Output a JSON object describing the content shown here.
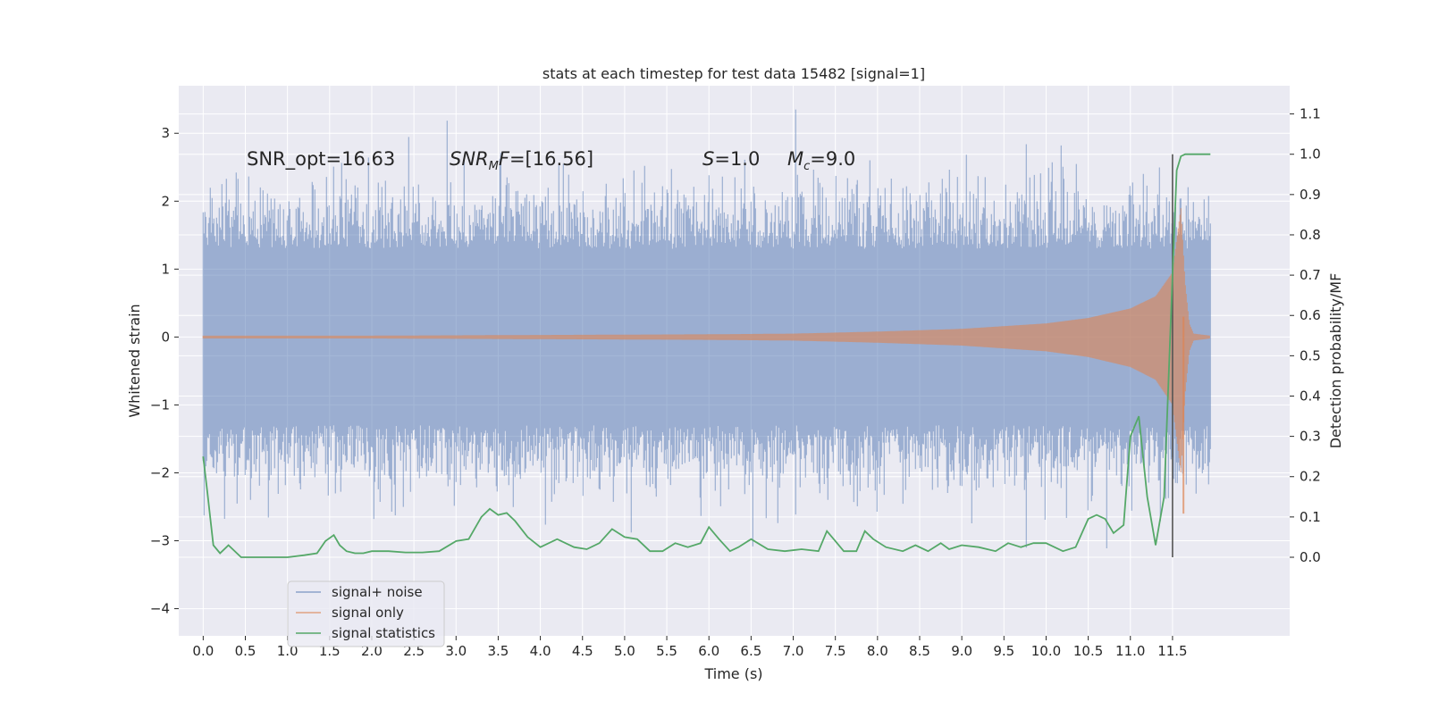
{
  "colors": {
    "background": "#eaeaf2",
    "grid": "#ffffff",
    "noise": "#4c72b0",
    "signal": "#dd8452",
    "stats": "#55a868",
    "marker": "#555555"
  },
  "chart_data": {
    "type": "line",
    "title": "stats at each timestep for test data 15482 [signal=1]",
    "xlabel": "Time (s)",
    "ylabel_left": "Whitened strain",
    "ylabel_right": "Detection probability/MF",
    "xlim": [
      -0.29,
      12.89
    ],
    "ylim_left": [
      -4.4,
      3.7
    ],
    "ylim_right": [
      -0.195,
      1.17
    ],
    "x_ticks": [
      "0.0",
      "0.5",
      "1.0",
      "1.5",
      "2.0",
      "2.5",
      "3.0",
      "3.5",
      "4.0",
      "4.5",
      "5.0",
      "5.5",
      "6.0",
      "6.5",
      "7.0",
      "7.5",
      "8.0",
      "8.5",
      "9.0",
      "9.5",
      "10.0",
      "10.5",
      "11.0",
      "11.5"
    ],
    "y_ticks_left": [
      "−4",
      "−3",
      "−2",
      "−1",
      "0",
      "1",
      "2",
      "3"
    ],
    "y_ticks_right": [
      "0.0",
      "0.1",
      "0.2",
      "0.3",
      "0.4",
      "0.5",
      "0.6",
      "0.7",
      "0.8",
      "0.9",
      "1.0",
      "1.1"
    ],
    "grid": true,
    "legend_placement": "lower-left",
    "annotations": [
      "SNR_opt=16.63",
      "SNR_MF=[16.56]",
      "S=1.0",
      "M_c=9.0"
    ],
    "merger_time": 11.5,
    "series": [
      {
        "name": "signal+ noise",
        "axis": "left",
        "description_range": [
          -3.7,
          3.35
        ],
        "t_start": 0.0,
        "t_end": 11.95
      },
      {
        "name": "signal only",
        "axis": "left",
        "envelope_x": [
          0.0,
          2.0,
          4.0,
          6.0,
          7.0,
          8.0,
          9.0,
          10.0,
          10.5,
          11.0,
          11.3,
          11.5,
          11.6,
          11.65,
          11.7,
          11.75,
          11.95
        ],
        "envelope_y": [
          0.02,
          0.02,
          0.03,
          0.04,
          0.05,
          0.08,
          0.12,
          0.2,
          0.28,
          0.42,
          0.6,
          0.95,
          1.9,
          0.8,
          0.2,
          0.05,
          0.02
        ],
        "t_start": 0.0,
        "t_end": 11.95
      },
      {
        "name": "signal statistics",
        "axis": "right",
        "x": [
          0.0,
          0.05,
          0.12,
          0.2,
          0.3,
          0.45,
          0.6,
          0.8,
          1.0,
          1.2,
          1.35,
          1.45,
          1.55,
          1.62,
          1.7,
          1.8,
          1.9,
          2.0,
          2.2,
          2.4,
          2.6,
          2.8,
          3.0,
          3.15,
          3.3,
          3.4,
          3.5,
          3.6,
          3.7,
          3.85,
          4.0,
          4.2,
          4.4,
          4.55,
          4.7,
          4.85,
          5.0,
          5.15,
          5.3,
          5.45,
          5.6,
          5.75,
          5.9,
          6.0,
          6.12,
          6.25,
          6.35,
          6.5,
          6.7,
          6.9,
          7.1,
          7.3,
          7.4,
          7.5,
          7.6,
          7.75,
          7.85,
          7.95,
          8.1,
          8.3,
          8.45,
          8.6,
          8.75,
          8.85,
          9.0,
          9.2,
          9.4,
          9.55,
          9.7,
          9.85,
          10.0,
          10.2,
          10.35,
          10.5,
          10.6,
          10.7,
          10.8,
          10.92,
          11.0,
          11.1,
          11.2,
          11.3,
          11.4,
          11.5,
          11.55,
          11.6,
          11.65,
          11.75,
          11.95
        ],
        "y": [
          0.25,
          0.16,
          0.03,
          0.01,
          0.03,
          0.0,
          0.0,
          0.0,
          0.0,
          0.005,
          0.01,
          0.04,
          0.055,
          0.03,
          0.015,
          0.01,
          0.01,
          0.015,
          0.015,
          0.012,
          0.012,
          0.015,
          0.04,
          0.045,
          0.1,
          0.12,
          0.105,
          0.11,
          0.09,
          0.05,
          0.025,
          0.045,
          0.025,
          0.02,
          0.035,
          0.07,
          0.05,
          0.045,
          0.015,
          0.015,
          0.035,
          0.025,
          0.035,
          0.075,
          0.045,
          0.015,
          0.025,
          0.045,
          0.02,
          0.015,
          0.02,
          0.015,
          0.065,
          0.04,
          0.015,
          0.015,
          0.065,
          0.045,
          0.025,
          0.015,
          0.03,
          0.015,
          0.035,
          0.02,
          0.03,
          0.025,
          0.015,
          0.035,
          0.025,
          0.035,
          0.035,
          0.015,
          0.025,
          0.095,
          0.105,
          0.095,
          0.06,
          0.08,
          0.3,
          0.35,
          0.15,
          0.03,
          0.15,
          0.7,
          0.96,
          0.995,
          1.0,
          1.0,
          1.0
        ]
      }
    ]
  }
}
